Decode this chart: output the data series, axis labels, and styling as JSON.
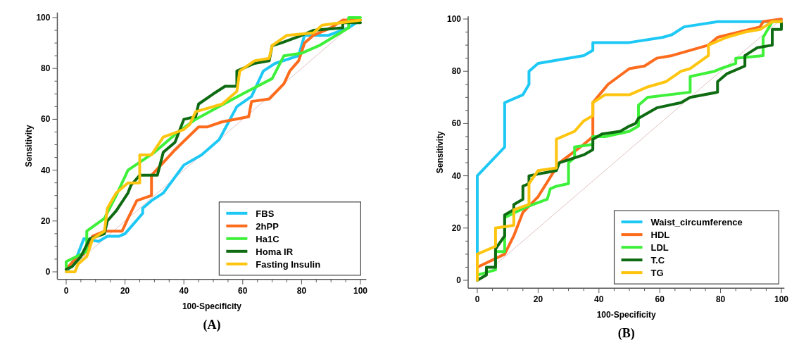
{
  "chart_data": [
    {
      "type": "line",
      "title": "(A)",
      "xlabel": "100-Specificity",
      "ylabel": "Sensitivity",
      "xlim": [
        -3,
        102
      ],
      "ylim": [
        -3,
        102
      ],
      "xticks": [
        0,
        {
          "value": 5,
          "label": null
        },
        {
          "value": 10,
          "label": null
        },
        {
          "value": 15,
          "label": null
        },
        20,
        {
          "value": 25,
          "label": null
        },
        {
          "value": 30,
          "label": null
        },
        {
          "value": 35,
          "label": null
        },
        40,
        {
          "value": 45,
          "label": null
        },
        {
          "value": 50,
          "label": null
        },
        {
          "value": 55,
          "label": null
        },
        60,
        {
          "value": 65,
          "label": null
        },
        {
          "value": 70,
          "label": null
        },
        {
          "value": 75,
          "label": null
        },
        80,
        {
          "value": 85,
          "label": null
        },
        {
          "value": 90,
          "label": null
        },
        {
          "value": 95,
          "label": null
        },
        100
      ],
      "yticks": [
        0,
        {
          "value": 5,
          "label": null
        },
        {
          "value": 10,
          "label": null
        },
        {
          "value": 15,
          "label": null
        },
        20,
        {
          "value": 25,
          "label": null
        },
        {
          "value": 30,
          "label": null
        },
        {
          "value": 35,
          "label": null
        },
        40,
        {
          "value": 45,
          "label": null
        },
        {
          "value": 50,
          "label": null
        },
        {
          "value": 55,
          "label": null
        },
        60,
        {
          "value": 65,
          "label": null
        },
        {
          "value": 70,
          "label": null
        },
        {
          "value": 75,
          "label": null
        },
        80,
        {
          "value": 85,
          "label": null
        },
        {
          "value": 90,
          "label": null
        },
        {
          "value": 95,
          "label": null
        },
        100
      ],
      "grid": false,
      "legend": "bottom right",
      "marker": "none",
      "line_style": "solid",
      "series": [
        {
          "color": "#d9b3b3",
          "x": [
            0,
            100
          ],
          "values": [
            0,
            100
          ]
        },
        {
          "name": "FBS",
          "color": "#1ec8f5",
          "x": [
            0,
            3,
            6,
            11,
            14,
            18,
            20,
            26,
            26,
            29,
            33,
            40,
            46,
            52,
            58,
            63,
            67,
            71,
            79,
            81,
            89,
            96,
            100
          ],
          "values": [
            0,
            4,
            13,
            12,
            14,
            14,
            15,
            23,
            25,
            28,
            31,
            42,
            46,
            52,
            65,
            69,
            79,
            82,
            85,
            93,
            93,
            96,
            99
          ]
        },
        {
          "name": "2hPP",
          "color": "#fd6b1c",
          "x": [
            0,
            3,
            6,
            9,
            13,
            19,
            21,
            24,
            29,
            29,
            33,
            37,
            45,
            48,
            53,
            62,
            63,
            69,
            74,
            76,
            79,
            81,
            84,
            90,
            94,
            100
          ],
          "values": [
            1,
            5,
            7,
            14,
            16,
            16,
            21,
            28,
            30,
            38,
            43,
            48,
            57,
            57,
            59,
            61,
            67,
            68,
            74,
            79,
            83,
            90,
            93,
            96,
            99,
            99
          ]
        },
        {
          "name": "Ha1C",
          "color": "#3ef03a",
          "x": [
            0,
            0,
            7,
            7,
            13,
            17,
            21,
            30,
            38,
            44,
            52,
            60,
            70,
            74,
            80,
            86,
            96,
            96,
            100
          ],
          "values": [
            2,
            4,
            8,
            16,
            21,
            30,
            40,
            47,
            55,
            60,
            65,
            70,
            76,
            85,
            86,
            89,
            96,
            100,
            100
          ]
        },
        {
          "name": "Homa IR",
          "color": "#0e6b12",
          "x": [
            0,
            2,
            5,
            8,
            13,
            14,
            17,
            21,
            22,
            25,
            31,
            33,
            37,
            40,
            44,
            45,
            50,
            54,
            58,
            58,
            64,
            69,
            70,
            73,
            80,
            84,
            94,
            94,
            100
          ],
          "values": [
            1,
            2,
            6,
            13,
            15,
            20,
            24,
            31,
            34,
            38,
            38,
            47,
            51,
            60,
            61,
            66,
            70,
            73,
            73,
            79,
            82,
            83,
            89,
            90,
            93,
            95,
            96,
            98,
            98
          ]
        },
        {
          "name": "Fasting Insulin",
          "color": "#fec510",
          "x": [
            0,
            3,
            4,
            7,
            9,
            13,
            14,
            17,
            21,
            25,
            25,
            29,
            33,
            40,
            42,
            44,
            53,
            58,
            59,
            64,
            69,
            70,
            75,
            84,
            87,
            100
          ],
          "values": [
            0,
            0,
            3,
            6,
            13,
            16,
            25,
            31,
            35,
            35,
            46,
            46,
            53,
            56,
            58,
            63,
            66,
            71,
            79,
            83,
            84,
            89,
            93,
            94,
            97,
            99
          ]
        }
      ]
    },
    {
      "type": "line",
      "title": "(B)",
      "xlabel": "100-Specificity",
      "ylabel": "Sensitivity",
      "xlim": [
        -3,
        101
      ],
      "ylim": [
        -3,
        101
      ],
      "xticks": [
        0,
        {
          "value": 5,
          "label": null
        },
        {
          "value": 10,
          "label": null
        },
        {
          "value": 15,
          "label": null
        },
        20,
        {
          "value": 25,
          "label": null
        },
        {
          "value": 30,
          "label": null
        },
        {
          "value": 35,
          "label": null
        },
        40,
        {
          "value": 45,
          "label": null
        },
        {
          "value": 50,
          "label": null
        },
        {
          "value": 55,
          "label": null
        },
        60,
        {
          "value": 65,
          "label": null
        },
        {
          "value": 70,
          "label": null
        },
        {
          "value": 75,
          "label": null
        },
        80,
        {
          "value": 85,
          "label": null
        },
        {
          "value": 90,
          "label": null
        },
        {
          "value": 95,
          "label": null
        },
        100
      ],
      "yticks": [
        0,
        {
          "value": 5,
          "label": null
        },
        {
          "value": 10,
          "label": null
        },
        {
          "value": 15,
          "label": null
        },
        20,
        {
          "value": 25,
          "label": null
        },
        {
          "value": 30,
          "label": null
        },
        {
          "value": 35,
          "label": null
        },
        40,
        {
          "value": 45,
          "label": null
        },
        {
          "value": 50,
          "label": null
        },
        {
          "value": 55,
          "label": null
        },
        60,
        {
          "value": 65,
          "label": null
        },
        {
          "value": 70,
          "label": null
        },
        {
          "value": 75,
          "label": null
        },
        80,
        {
          "value": 85,
          "label": null
        },
        {
          "value": 90,
          "label": null
        },
        {
          "value": 95,
          "label": null
        },
        100
      ],
      "grid": false,
      "legend": "bottom right",
      "marker": "none",
      "line_style": "solid",
      "series": [
        {
          "color": "#d9b3b3",
          "x": [
            0,
            100
          ],
          "values": [
            0,
            100
          ]
        },
        {
          "name": "Waist_circumference",
          "color": "#1ec8f5",
          "x": [
            0,
            0,
            9,
            9,
            15,
            17,
            17,
            20,
            35,
            38,
            38,
            50,
            61,
            64,
            68,
            79,
            93,
            100
          ],
          "values": [
            0,
            40,
            51,
            68,
            71,
            75,
            80,
            83,
            86,
            88,
            91,
            91,
            93,
            94,
            97,
            99,
            99,
            99
          ]
        },
        {
          "name": "HDL",
          "color": "#fd6b1c",
          "x": [
            0,
            0,
            9,
            12,
            15,
            20,
            27,
            35,
            38,
            38,
            43,
            50,
            55,
            59,
            64,
            76,
            79,
            93,
            94,
            100
          ],
          "values": [
            4,
            5,
            10,
            17,
            26,
            32,
            45,
            52,
            55,
            68,
            75,
            81,
            82,
            85,
            86,
            90,
            93,
            97,
            99,
            100
          ]
        },
        {
          "name": "LDL",
          "color": "#3ef03a",
          "x": [
            0,
            0,
            6,
            6,
            9,
            9,
            16,
            23,
            24,
            26,
            30,
            30,
            32,
            32,
            38,
            38,
            42,
            50,
            53,
            53,
            56,
            70,
            70,
            78,
            80,
            85,
            85,
            94,
            94,
            97,
            100
          ],
          "values": [
            0,
            2,
            4,
            11,
            11,
            24,
            28,
            31,
            35,
            36,
            37,
            45,
            47,
            51,
            52,
            55,
            55,
            57,
            59,
            67,
            70,
            72,
            78,
            80,
            81,
            83,
            85,
            86,
            93,
            99,
            99
          ]
        },
        {
          "name": "T.C",
          "color": "#0e6b12",
          "x": [
            0,
            3,
            3,
            6,
            6,
            9,
            9,
            12,
            12,
            15,
            15,
            17,
            17,
            26,
            27,
            35,
            38,
            38,
            41,
            47,
            50,
            52,
            53,
            59,
            67,
            70,
            79,
            79,
            82,
            88,
            88,
            92,
            97,
            97,
            100,
            100
          ],
          "values": [
            0,
            2,
            5,
            5,
            12,
            17,
            25,
            27,
            29,
            31,
            36,
            37,
            40,
            42,
            45,
            48,
            50,
            54,
            56,
            57,
            59,
            60,
            62,
            66,
            68,
            70,
            72,
            76,
            79,
            82,
            86,
            89,
            90,
            96,
            96,
            99
          ]
        },
        {
          "name": "TG",
          "color": "#fec510",
          "x": [
            0,
            0,
            6,
            6,
            12,
            12,
            17,
            17,
            20,
            26,
            26,
            32,
            35,
            38,
            38,
            42,
            50,
            56,
            62,
            67,
            70,
            76,
            76,
            82,
            88,
            93,
            97,
            100
          ],
          "values": [
            0,
            10,
            13,
            20,
            21,
            27,
            29,
            37,
            42,
            43,
            54,
            57,
            61,
            63,
            68,
            71,
            71,
            74,
            76,
            80,
            81,
            86,
            90,
            93,
            95,
            96,
            99,
            99
          ]
        }
      ]
    }
  ]
}
